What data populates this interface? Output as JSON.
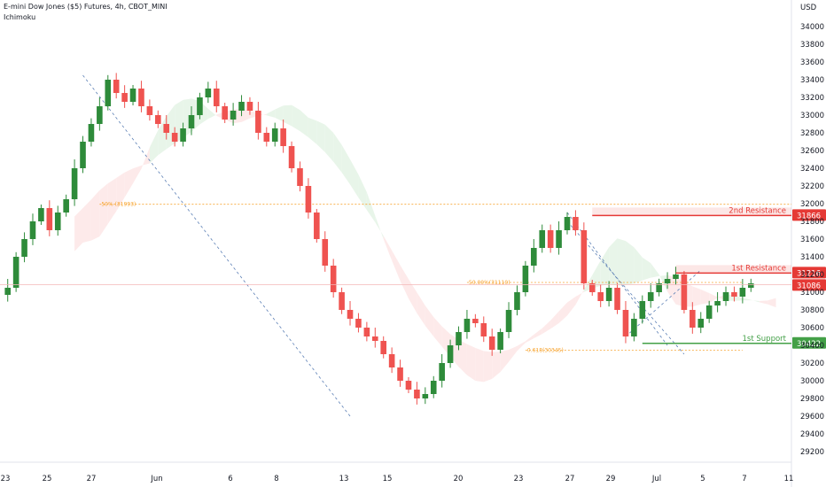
{
  "header": {
    "symbol_title": "E-mini Dow Jones ($5) Futures, 4h, CBOT_MINI",
    "indicator": "Ichimoku"
  },
  "colors": {
    "up": "#26a69a",
    "up_candle": "#2e8b3a",
    "down": "#ef5350",
    "resistance": "#e53935",
    "support": "#43a047",
    "cloud_green": "#e8f5e9",
    "cloud_red": "#fdeaea",
    "fib": "#f7a532",
    "trend": "#5b7fb5"
  },
  "chart_data": {
    "type": "candlestick",
    "currency_label": "USD",
    "ylim": [
      29100,
      34200
    ],
    "y_ticks": [
      29200,
      29400,
      29600,
      29800,
      30000,
      30200,
      30400,
      30600,
      30800,
      31000,
      31200,
      31400,
      31600,
      31800,
      32000,
      32200,
      32400,
      32600,
      32800,
      33000,
      33200,
      33400,
      33600,
      33800,
      34000
    ],
    "x_tick_labels": [
      "23",
      "25",
      "27",
      "Jun",
      "6",
      "8",
      "13",
      "15",
      "20",
      "23",
      "27",
      "29",
      "Jul",
      "5",
      "7",
      "11"
    ],
    "levels": [
      {
        "label": "2nd Resistance",
        "value": 31866,
        "badge": "31866",
        "kind": "resistance"
      },
      {
        "label": "1st Resistance",
        "value": 31216,
        "badge": "31216",
        "kind": "resistance"
      },
      {
        "label": "1st Support",
        "value": 30422,
        "badge": "30422",
        "kind": "support"
      }
    ],
    "current_price": {
      "value": 31086,
      "badge": "31086"
    },
    "fib_labels": [
      {
        "text": "50% (31993)",
        "value": 31993
      },
      {
        "text": "50.00%(31110)",
        "value": 31110
      },
      {
        "text": "0.618(30345)",
        "value": 30345
      }
    ],
    "close_path": [
      31050,
      31400,
      31600,
      31800,
      31950,
      31700,
      31900,
      32050,
      32400,
      32700,
      32900,
      33100,
      33400,
      33250,
      33150,
      33300,
      33100,
      33000,
      32900,
      32800,
      32700,
      32850,
      33000,
      33200,
      33300,
      33100,
      32950,
      33050,
      33150,
      33050,
      32800,
      32700,
      32850,
      32650,
      32400,
      32200,
      31900,
      31600,
      31300,
      31000,
      30800,
      30700,
      30600,
      30500,
      30450,
      30300,
      30150,
      30000,
      29900,
      29800,
      29850,
      30000,
      30200,
      30400,
      30550,
      30700,
      30650,
      30500,
      30350,
      30550,
      30800,
      31000,
      31300,
      31500,
      31700,
      31500,
      31700,
      31850,
      31700,
      31100,
      31000,
      30900,
      31050,
      30800,
      30500,
      30700,
      30900,
      31000,
      31100,
      31150,
      31200,
      30800,
      30600,
      30700,
      30850,
      30900,
      31000,
      30950,
      31050,
      31100
    ]
  }
}
